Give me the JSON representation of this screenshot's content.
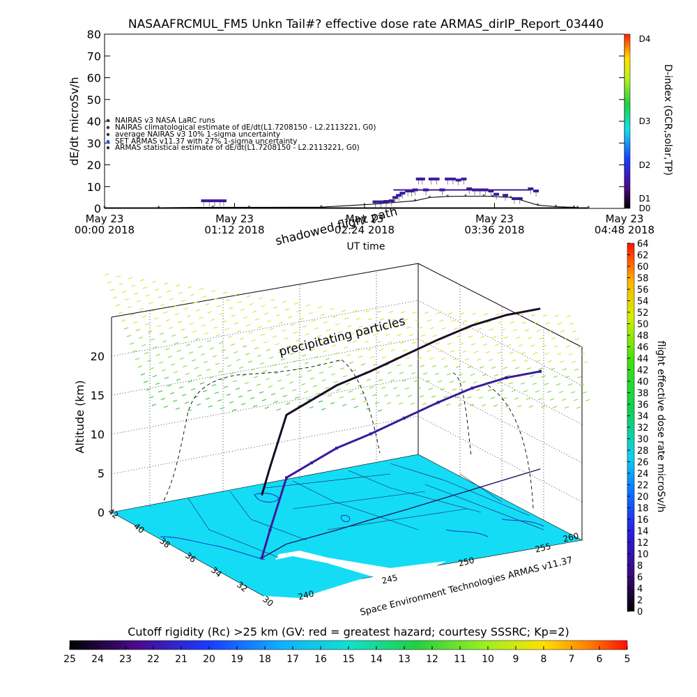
{
  "figure_title": "NASAAFRCMUL_FM5 Unkn Tail#? effective dose rate ARMAS_dirIP_Report_03440",
  "colors": {
    "flight_track": "#1a0a24",
    "armas_points": "#3a1a9c",
    "ocean": "#14dcf5",
    "land": "#ffffff"
  },
  "chart_data": [
    {
      "type": "line",
      "title": "NASAAFRCMUL_FM5 Unkn Tail#? effective dose rate ARMAS_dirIP_Report_03440",
      "xlabel": "UT time",
      "ylabel": "dE/dt microSv/h",
      "right_axis_label": "D-index (GCR,solar,TP)",
      "ylim": [
        0,
        80
      ],
      "y_ticks": [
        "0",
        "10",
        "20",
        "30",
        "40",
        "50",
        "60",
        "70",
        "80"
      ],
      "x_ticks": [
        {
          "date": "May 23",
          "time": "00:00 2018"
        },
        {
          "date": "May 23",
          "time": "01:12 2018"
        },
        {
          "date": "May 23",
          "time": "02:24 2018"
        },
        {
          "date": "May 23",
          "time": "03:36 2018"
        },
        {
          "date": "May 23",
          "time": "04:48 2018"
        }
      ],
      "d_index_ticks": [
        "D0",
        "D1",
        "D2",
        "D3",
        "D4"
      ],
      "legend": [
        "NAIRAS v3 NASA LaRC runs",
        "NAIRAS climatological estimate of dE/dt(L1.7208150 - L2.2113221, G0)",
        "average NAIRAS v3 10% 1-sigma uncertainty",
        "SET ARMAS v11.37 with 27% 1-sigma uncertainty",
        "ARMAS statistical estimate of dE/dt(L1.7208150 - L2.2113221, G0)"
      ],
      "legend_placement": "left",
      "series": [
        {
          "name": "NAIRAS climatological estimate of dE/dt(L1.7208150 - L2.2113221, G0)",
          "x_minutes": [
            0,
            30,
            60,
            80,
            120,
            150,
            172,
            180,
            190,
            200,
            210,
            215,
            225,
            230,
            240,
            250,
            260,
            262,
            268
          ],
          "values": [
            0.3,
            0.3,
            0.5,
            0.5,
            0.6,
            2.0,
            3.5,
            5.0,
            5.5,
            5.6,
            5.6,
            5.5,
            5.0,
            4.0,
            1.5,
            0.8,
            0.5,
            0.3,
            0.3
          ]
        },
        {
          "name": "SET ARMAS v11.37 with 27% 1-sigma uncertainty",
          "x_minutes": [
            55,
            58,
            61,
            64,
            66,
            150,
            153,
            156,
            159,
            161,
            163,
            165,
            168,
            170,
            172,
            174,
            176,
            178,
            181,
            184,
            187,
            190,
            193,
            196,
            199,
            202,
            205,
            208,
            211,
            214,
            217,
            222,
            227,
            230,
            236,
            239
          ],
          "values": [
            3.5,
            3.5,
            3.5,
            3.5,
            3.5,
            3.0,
            3.0,
            3.2,
            3.5,
            5.0,
            6.0,
            7.0,
            8.0,
            8.0,
            8.5,
            13.5,
            13.5,
            8.5,
            13.5,
            13.5,
            8.5,
            13.5,
            13.5,
            13.0,
            13.5,
            9.0,
            8.5,
            8.5,
            8.5,
            8.0,
            6.5,
            6.0,
            4.5,
            4.5,
            9.0,
            8.0
          ]
        }
      ]
    },
    {
      "type": "scatter",
      "subtitle": "Space Environment Technologies ARMAS v11.37",
      "zlabel": "Altitude (km)",
      "z_ticks": [
        "0",
        "5",
        "10",
        "15",
        "20"
      ],
      "lat_ticks": [
        "42",
        "40",
        "38",
        "36",
        "34",
        "32",
        "30"
      ],
      "lon_ticks": [
        "240",
        "245",
        "250",
        "255",
        "260"
      ],
      "annotations": [
        "shadowed flight path",
        "precipitating particles"
      ],
      "flight_path": {
        "lon": [
          237.8,
          238.2,
          239.0,
          240.5,
          242.0,
          244.0,
          246.0,
          248.0,
          250.0,
          252.0,
          254.0
        ],
        "lat": [
          34.0,
          34.5,
          35.5,
          36.0,
          36.5,
          37.3,
          38.0,
          38.8,
          39.6,
          40.4,
          41.2
        ],
        "alt_km": [
          0.0,
          3.0,
          8.5,
          9.5,
          10.5,
          11.0,
          11.8,
          12.5,
          13.0,
          13.0,
          12.5
        ]
      }
    },
    {
      "type": "heatmap",
      "colorbar_label": "flight effective dose rate microSv/h",
      "range": [
        0,
        64
      ],
      "ticks": [
        "0",
        "2",
        "4",
        "6",
        "8",
        "10",
        "12",
        "14",
        "16",
        "18",
        "20",
        "22",
        "24",
        "26",
        "28",
        "30",
        "32",
        "34",
        "36",
        "38",
        "40",
        "42",
        "44",
        "46",
        "48",
        "50",
        "52",
        "54",
        "56",
        "58",
        "60",
        "62",
        "64"
      ]
    },
    {
      "type": "heatmap",
      "colorbar_label": "Cutoff rigidity (Rc) >25 km (GV: red = greatest hazard; courtesy SSSRC; Kp=2)",
      "range": [
        25,
        5
      ],
      "ticks": [
        "25",
        "24",
        "23",
        "22",
        "21",
        "20",
        "19",
        "18",
        "17",
        "16",
        "15",
        "14",
        "13",
        "12",
        "11",
        "10",
        "9",
        "8",
        "7",
        "6",
        "5"
      ]
    }
  ]
}
